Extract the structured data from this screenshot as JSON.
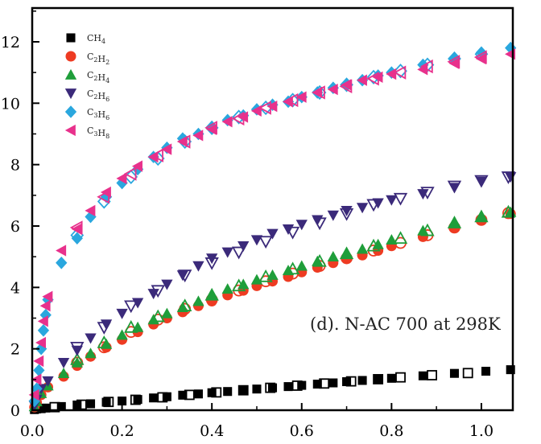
{
  "chart_data": {
    "type": "scatter",
    "xlim": [
      0,
      1.07
    ],
    "ylim": [
      0,
      13.1
    ],
    "x_ticks": [
      "0.0",
      "0.2",
      "0.4",
      "0.6",
      "0.8",
      "1.0"
    ],
    "x_tick_values": [
      0.0,
      0.2,
      0.4,
      0.6,
      0.8,
      1.0
    ],
    "y_ticks": [
      "0",
      "2",
      "4",
      "6",
      "8",
      "10",
      "12"
    ],
    "y_tick_values": [
      0,
      2,
      4,
      6,
      8,
      10,
      12
    ],
    "annotation": "(d). N-AC 700 at 298K",
    "legend_position": "top-left",
    "grid": false,
    "series": [
      {
        "name": "CH4",
        "marker": "square",
        "color": "#000000",
        "adsorption": [
          [
            0.005,
            0.02
          ],
          [
            0.01,
            0.04
          ],
          [
            0.02,
            0.05
          ],
          [
            0.03,
            0.07
          ],
          [
            0.065,
            0.12
          ],
          [
            0.1,
            0.17
          ],
          [
            0.13,
            0.21
          ],
          [
            0.165,
            0.26
          ],
          [
            0.2,
            0.3
          ],
          [
            0.235,
            0.35
          ],
          [
            0.27,
            0.4
          ],
          [
            0.3,
            0.44
          ],
          [
            0.335,
            0.49
          ],
          [
            0.37,
            0.53
          ],
          [
            0.4,
            0.57
          ],
          [
            0.435,
            0.61
          ],
          [
            0.47,
            0.65
          ],
          [
            0.5,
            0.69
          ],
          [
            0.535,
            0.73
          ],
          [
            0.57,
            0.77
          ],
          [
            0.6,
            0.81
          ],
          [
            0.635,
            0.85
          ],
          [
            0.67,
            0.89
          ],
          [
            0.7,
            0.93
          ],
          [
            0.735,
            0.97
          ],
          [
            0.77,
            1.0
          ],
          [
            0.8,
            1.04
          ],
          [
            0.87,
            1.12
          ],
          [
            0.94,
            1.2
          ],
          [
            1.01,
            1.27
          ],
          [
            1.065,
            1.32
          ]
        ],
        "desorption": [
          [
            0.05,
            0.1
          ],
          [
            0.11,
            0.18
          ],
          [
            0.17,
            0.27
          ],
          [
            0.23,
            0.34
          ],
          [
            0.29,
            0.42
          ],
          [
            0.35,
            0.5
          ],
          [
            0.41,
            0.58
          ],
          [
            0.47,
            0.65
          ],
          [
            0.53,
            0.73
          ],
          [
            0.59,
            0.8
          ],
          [
            0.65,
            0.87
          ],
          [
            0.71,
            0.94
          ],
          [
            0.77,
            1.01
          ],
          [
            0.82,
            1.07
          ],
          [
            0.89,
            1.14
          ],
          [
            0.97,
            1.21
          ]
        ]
      },
      {
        "name": "C2H2",
        "marker": "circle",
        "color": "#ee3b22",
        "adsorption": [
          [
            0.005,
            0.1
          ],
          [
            0.01,
            0.25
          ],
          [
            0.02,
            0.5
          ],
          [
            0.035,
            0.75
          ],
          [
            0.07,
            1.1
          ],
          [
            0.1,
            1.45
          ],
          [
            0.13,
            1.75
          ],
          [
            0.165,
            2.05
          ],
          [
            0.2,
            2.3
          ],
          [
            0.235,
            2.55
          ],
          [
            0.27,
            2.8
          ],
          [
            0.3,
            3.0
          ],
          [
            0.335,
            3.2
          ],
          [
            0.37,
            3.4
          ],
          [
            0.4,
            3.55
          ],
          [
            0.435,
            3.75
          ],
          [
            0.47,
            3.9
          ],
          [
            0.5,
            4.05
          ],
          [
            0.535,
            4.2
          ],
          [
            0.57,
            4.35
          ],
          [
            0.6,
            4.5
          ],
          [
            0.635,
            4.65
          ],
          [
            0.67,
            4.8
          ],
          [
            0.7,
            4.95
          ],
          [
            0.735,
            5.05
          ],
          [
            0.77,
            5.2
          ],
          [
            0.8,
            5.35
          ],
          [
            0.87,
            5.65
          ],
          [
            0.94,
            5.95
          ],
          [
            1.0,
            6.2
          ],
          [
            1.065,
            6.4
          ]
        ],
        "desorption": [
          [
            0.1,
            1.55
          ],
          [
            0.16,
            2.05
          ],
          [
            0.22,
            2.55
          ],
          [
            0.28,
            2.95
          ],
          [
            0.34,
            3.3
          ],
          [
            0.4,
            3.6
          ],
          [
            0.46,
            3.9
          ],
          [
            0.52,
            4.2
          ],
          [
            0.58,
            4.45
          ],
          [
            0.64,
            4.7
          ],
          [
            0.7,
            4.95
          ],
          [
            0.76,
            5.2
          ],
          [
            0.82,
            5.45
          ],
          [
            0.88,
            5.7
          ],
          [
            0.94,
            5.95
          ],
          [
            1.0,
            6.2
          ],
          [
            1.06,
            6.42
          ]
        ]
      },
      {
        "name": "C2H4",
        "marker": "triangle-up",
        "color": "#1f9e3a",
        "adsorption": [
          [
            0.005,
            0.12
          ],
          [
            0.01,
            0.28
          ],
          [
            0.02,
            0.55
          ],
          [
            0.035,
            0.8
          ],
          [
            0.07,
            1.2
          ],
          [
            0.1,
            1.55
          ],
          [
            0.13,
            1.85
          ],
          [
            0.165,
            2.15
          ],
          [
            0.2,
            2.45
          ],
          [
            0.235,
            2.7
          ],
          [
            0.27,
            2.95
          ],
          [
            0.3,
            3.15
          ],
          [
            0.335,
            3.35
          ],
          [
            0.37,
            3.55
          ],
          [
            0.4,
            3.75
          ],
          [
            0.435,
            3.95
          ],
          [
            0.47,
            4.1
          ],
          [
            0.5,
            4.25
          ],
          [
            0.535,
            4.4
          ],
          [
            0.57,
            4.55
          ],
          [
            0.6,
            4.7
          ],
          [
            0.635,
            4.85
          ],
          [
            0.67,
            5.0
          ],
          [
            0.7,
            5.1
          ],
          [
            0.735,
            5.25
          ],
          [
            0.77,
            5.4
          ],
          [
            0.8,
            5.55
          ],
          [
            0.87,
            5.85
          ],
          [
            0.94,
            6.1
          ],
          [
            1.0,
            6.3
          ],
          [
            1.065,
            6.45
          ]
        ],
        "desorption": [
          [
            0.1,
            1.65
          ],
          [
            0.16,
            2.2
          ],
          [
            0.22,
            2.7
          ],
          [
            0.28,
            3.05
          ],
          [
            0.34,
            3.4
          ],
          [
            0.4,
            3.75
          ],
          [
            0.46,
            4.05
          ],
          [
            0.52,
            4.35
          ],
          [
            0.58,
            4.6
          ],
          [
            0.64,
            4.85
          ],
          [
            0.7,
            5.1
          ],
          [
            0.76,
            5.35
          ],
          [
            0.82,
            5.6
          ],
          [
            0.88,
            5.85
          ],
          [
            0.94,
            6.1
          ],
          [
            1.0,
            6.3
          ],
          [
            1.06,
            6.45
          ]
        ]
      },
      {
        "name": "C2H6",
        "marker": "triangle-down",
        "color": "#3b2a7a",
        "adsorption": [
          [
            0.005,
            0.15
          ],
          [
            0.01,
            0.35
          ],
          [
            0.02,
            0.7
          ],
          [
            0.035,
            0.95
          ],
          [
            0.07,
            1.55
          ],
          [
            0.1,
            1.95
          ],
          [
            0.13,
            2.35
          ],
          [
            0.165,
            2.8
          ],
          [
            0.2,
            3.15
          ],
          [
            0.235,
            3.5
          ],
          [
            0.27,
            3.8
          ],
          [
            0.3,
            4.1
          ],
          [
            0.335,
            4.4
          ],
          [
            0.37,
            4.7
          ],
          [
            0.4,
            4.95
          ],
          [
            0.435,
            5.15
          ],
          [
            0.47,
            5.35
          ],
          [
            0.5,
            5.55
          ],
          [
            0.535,
            5.75
          ],
          [
            0.57,
            5.9
          ],
          [
            0.6,
            6.05
          ],
          [
            0.635,
            6.2
          ],
          [
            0.67,
            6.35
          ],
          [
            0.7,
            6.5
          ],
          [
            0.735,
            6.6
          ],
          [
            0.77,
            6.75
          ],
          [
            0.8,
            6.85
          ],
          [
            0.87,
            7.05
          ],
          [
            0.94,
            7.25
          ],
          [
            1.0,
            7.45
          ],
          [
            1.065,
            7.6
          ]
        ],
        "desorption": [
          [
            0.1,
            2.05
          ],
          [
            0.16,
            2.7
          ],
          [
            0.22,
            3.4
          ],
          [
            0.28,
            3.9
          ],
          [
            0.34,
            4.4
          ],
          [
            0.4,
            4.8
          ],
          [
            0.46,
            5.15
          ],
          [
            0.52,
            5.5
          ],
          [
            0.58,
            5.8
          ],
          [
            0.64,
            6.1
          ],
          [
            0.7,
            6.4
          ],
          [
            0.76,
            6.7
          ],
          [
            0.82,
            6.9
          ],
          [
            0.88,
            7.1
          ],
          [
            0.94,
            7.3
          ],
          [
            1.0,
            7.48
          ],
          [
            1.06,
            7.6
          ]
        ]
      },
      {
        "name": "C3H6",
        "marker": "diamond",
        "color": "#2aa7de",
        "adsorption": [
          [
            0.005,
            0.3
          ],
          [
            0.01,
            0.7
          ],
          [
            0.015,
            1.3
          ],
          [
            0.02,
            2.0
          ],
          [
            0.025,
            2.6
          ],
          [
            0.03,
            3.1
          ],
          [
            0.035,
            3.6
          ],
          [
            0.065,
            4.8
          ],
          [
            0.1,
            5.6
          ],
          [
            0.13,
            6.3
          ],
          [
            0.165,
            6.95
          ],
          [
            0.2,
            7.4
          ],
          [
            0.235,
            7.85
          ],
          [
            0.27,
            8.25
          ],
          [
            0.3,
            8.55
          ],
          [
            0.335,
            8.85
          ],
          [
            0.37,
            9.0
          ],
          [
            0.4,
            9.2
          ],
          [
            0.435,
            9.45
          ],
          [
            0.47,
            9.6
          ],
          [
            0.5,
            9.8
          ],
          [
            0.535,
            9.95
          ],
          [
            0.57,
            10.05
          ],
          [
            0.6,
            10.2
          ],
          [
            0.635,
            10.35
          ],
          [
            0.67,
            10.5
          ],
          [
            0.7,
            10.6
          ],
          [
            0.735,
            10.75
          ],
          [
            0.77,
            10.9
          ],
          [
            0.8,
            11.0
          ],
          [
            0.87,
            11.25
          ],
          [
            0.94,
            11.45
          ],
          [
            1.0,
            11.65
          ],
          [
            1.065,
            11.8
          ]
        ],
        "desorption": [
          [
            0.1,
            5.7
          ],
          [
            0.16,
            6.8
          ],
          [
            0.22,
            7.6
          ],
          [
            0.28,
            8.2
          ],
          [
            0.34,
            8.75
          ],
          [
            0.4,
            9.2
          ],
          [
            0.46,
            9.55
          ],
          [
            0.52,
            9.85
          ],
          [
            0.58,
            10.1
          ],
          [
            0.64,
            10.35
          ],
          [
            0.7,
            10.6
          ],
          [
            0.76,
            10.85
          ],
          [
            0.82,
            11.05
          ],
          [
            0.88,
            11.25
          ],
          [
            0.94,
            11.45
          ],
          [
            1.0,
            11.6
          ]
        ]
      },
      {
        "name": "C3H8",
        "marker": "triangle-left",
        "color": "#e8318c",
        "adsorption": [
          [
            0.005,
            0.5
          ],
          [
            0.01,
            1.0
          ],
          [
            0.015,
            1.6
          ],
          [
            0.02,
            2.2
          ],
          [
            0.025,
            2.9
          ],
          [
            0.03,
            3.4
          ],
          [
            0.035,
            3.7
          ],
          [
            0.065,
            5.2
          ],
          [
            0.1,
            5.9
          ],
          [
            0.13,
            6.5
          ],
          [
            0.165,
            7.1
          ],
          [
            0.2,
            7.55
          ],
          [
            0.235,
            7.95
          ],
          [
            0.27,
            8.25
          ],
          [
            0.3,
            8.5
          ],
          [
            0.335,
            8.75
          ],
          [
            0.37,
            8.95
          ],
          [
            0.4,
            9.15
          ],
          [
            0.435,
            9.4
          ],
          [
            0.47,
            9.55
          ],
          [
            0.5,
            9.75
          ],
          [
            0.535,
            9.9
          ],
          [
            0.57,
            10.05
          ],
          [
            0.6,
            10.2
          ],
          [
            0.635,
            10.35
          ],
          [
            0.67,
            10.45
          ],
          [
            0.7,
            10.6
          ],
          [
            0.735,
            10.75
          ],
          [
            0.77,
            10.85
          ],
          [
            0.8,
            10.95
          ],
          [
            0.87,
            11.1
          ],
          [
            0.94,
            11.3
          ],
          [
            1.0,
            11.45
          ],
          [
            1.065,
            11.6
          ]
        ],
        "desorption": [
          [
            0.1,
            5.95
          ],
          [
            0.16,
            6.95
          ],
          [
            0.22,
            7.7
          ],
          [
            0.28,
            8.3
          ],
          [
            0.34,
            8.75
          ],
          [
            0.4,
            9.2
          ],
          [
            0.46,
            9.5
          ],
          [
            0.52,
            9.85
          ],
          [
            0.58,
            10.1
          ],
          [
            0.64,
            10.35
          ],
          [
            0.7,
            10.55
          ],
          [
            0.76,
            10.8
          ],
          [
            0.82,
            11.0
          ],
          [
            0.88,
            11.2
          ],
          [
            0.94,
            11.35
          ],
          [
            1.0,
            11.5
          ]
        ]
      }
    ]
  }
}
